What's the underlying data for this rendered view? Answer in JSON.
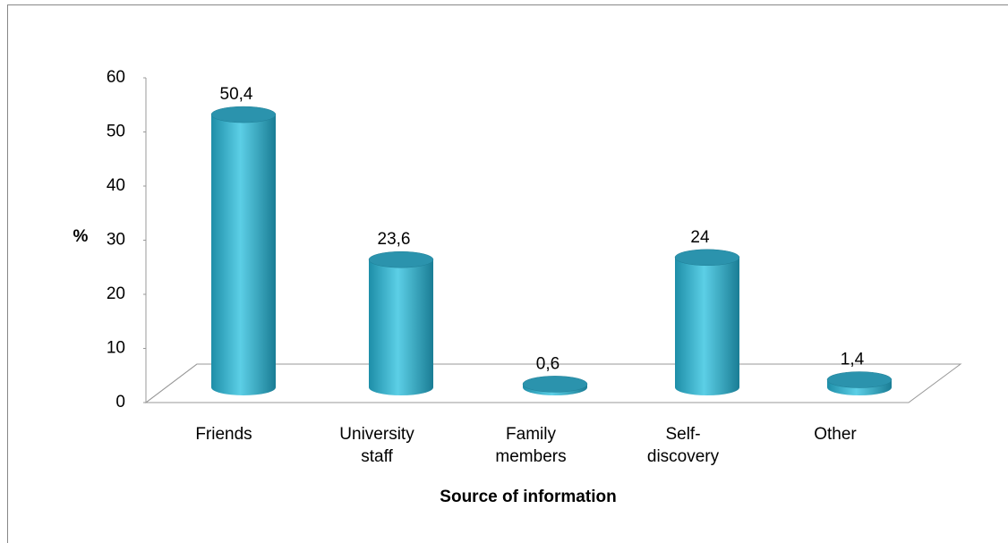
{
  "chart_data": {
    "type": "bar3d",
    "categories": [
      "Friends",
      "University staff",
      "Family members",
      "Self-discovery",
      "Other"
    ],
    "values": [
      50.4,
      23.6,
      0.6,
      24,
      1.4
    ],
    "value_labels": [
      "50,4",
      "23,6",
      "0,6",
      "24",
      "1,4"
    ],
    "color": "#3fb6d1",
    "ylim": [
      0,
      60
    ],
    "yticks": [
      0,
      10,
      20,
      30,
      40,
      50,
      60
    ],
    "y_label": "%",
    "x_label": "Source of information"
  }
}
